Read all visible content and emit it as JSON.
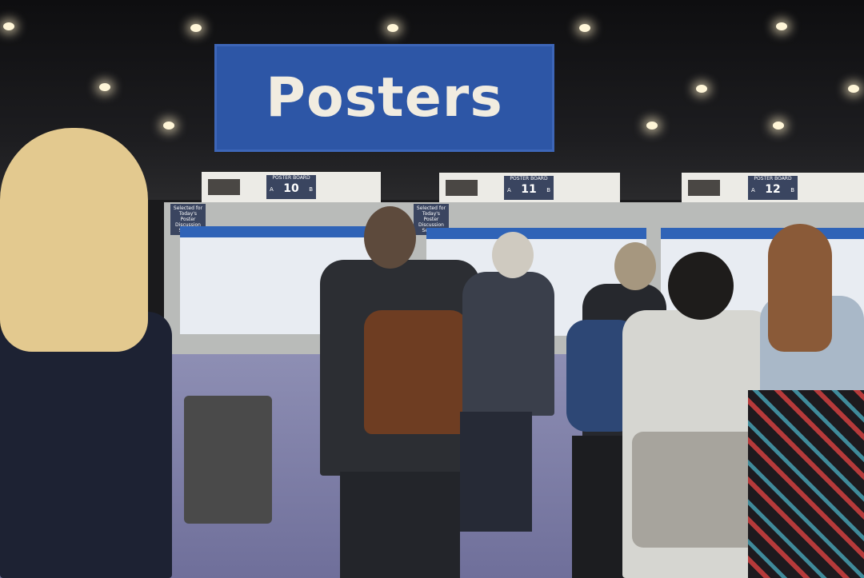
{
  "banner": {
    "title": "Posters",
    "color": "#2d56a6"
  },
  "boards": [
    {
      "label": "POSTER BOARD",
      "number": "10",
      "side_a": "A",
      "side_b": "B",
      "badge": "Selected for Today's Poster Discussion Session"
    },
    {
      "label": "POSTER BOARD",
      "number": "11",
      "side_a": "A",
      "side_b": "B",
      "badge": "Selected for Today's Poster Discussion Session"
    },
    {
      "label": "POSTER BOARD",
      "number": "12",
      "side_a": "A",
      "side_b": "B"
    }
  ]
}
